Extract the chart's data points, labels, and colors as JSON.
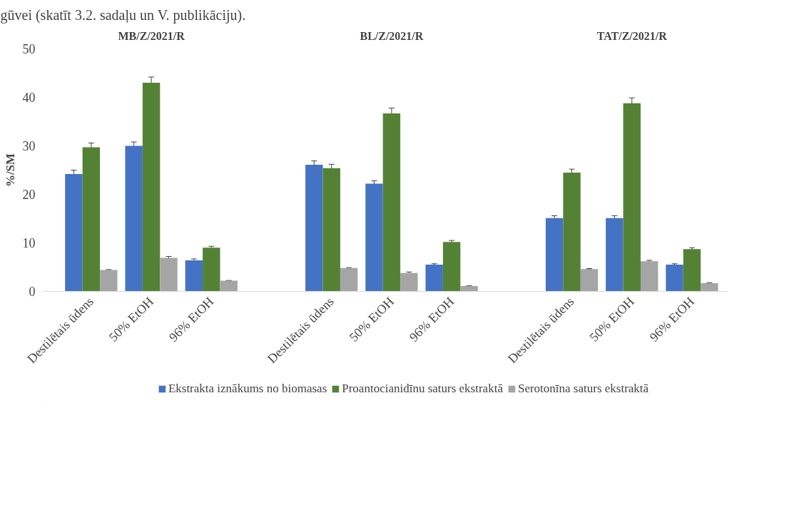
{
  "chart_data": {
    "type": "bar",
    "ylabel": "%/SM",
    "categories": [
      "Destilētais ūdens",
      "50% EtOH",
      "96% EtOH",
      "Destilētais ūdens",
      "50% EtOH",
      "96% EtOH",
      "Destilētais ūdens",
      "50% EtOH",
      "96% EtOH"
    ],
    "series": [
      {
        "name": "Ekstrakta iznākums no biomasas",
        "color": "#4472c4",
        "values": [
          24.2,
          30.0,
          6.4,
          26.1,
          22.2,
          5.5,
          15.1,
          15.1,
          5.5
        ],
        "errors": [
          0.8,
          0.8,
          0.3,
          0.8,
          0.6,
          0.2,
          0.5,
          0.5,
          0.2
        ]
      },
      {
        "name": "Proantocianidīnu saturs ekstraktā",
        "color": "#548235",
        "values": [
          29.7,
          43.0,
          9.0,
          25.4,
          36.7,
          10.2,
          24.5,
          38.8,
          8.7
        ],
        "errors": [
          0.9,
          1.2,
          0.3,
          0.8,
          1.1,
          0.3,
          0.7,
          1.1,
          0.3
        ]
      },
      {
        "name": "Serotonīna saturs ekstraktā",
        "color": "#a5a5a5",
        "values": [
          4.4,
          6.9,
          2.2,
          4.8,
          3.8,
          1.1,
          4.6,
          6.2,
          1.7
        ],
        "errors": [
          0.1,
          0.3,
          0.05,
          0.1,
          0.2,
          0.05,
          0.1,
          0.2,
          0.1
        ]
      }
    ],
    "ylim": [
      0,
      50
    ],
    "yticks": [
      0,
      10,
      20,
      30,
      40,
      50
    ],
    "grid": false,
    "legend": "bottom",
    "annotations": [
      "MB/Z/2021/R",
      "BL/Z/2021/R",
      "TAT/Z/2021/R",
      "gūvei (skatīt 3.2. sadaļu un V. publikāciju)."
    ]
  }
}
